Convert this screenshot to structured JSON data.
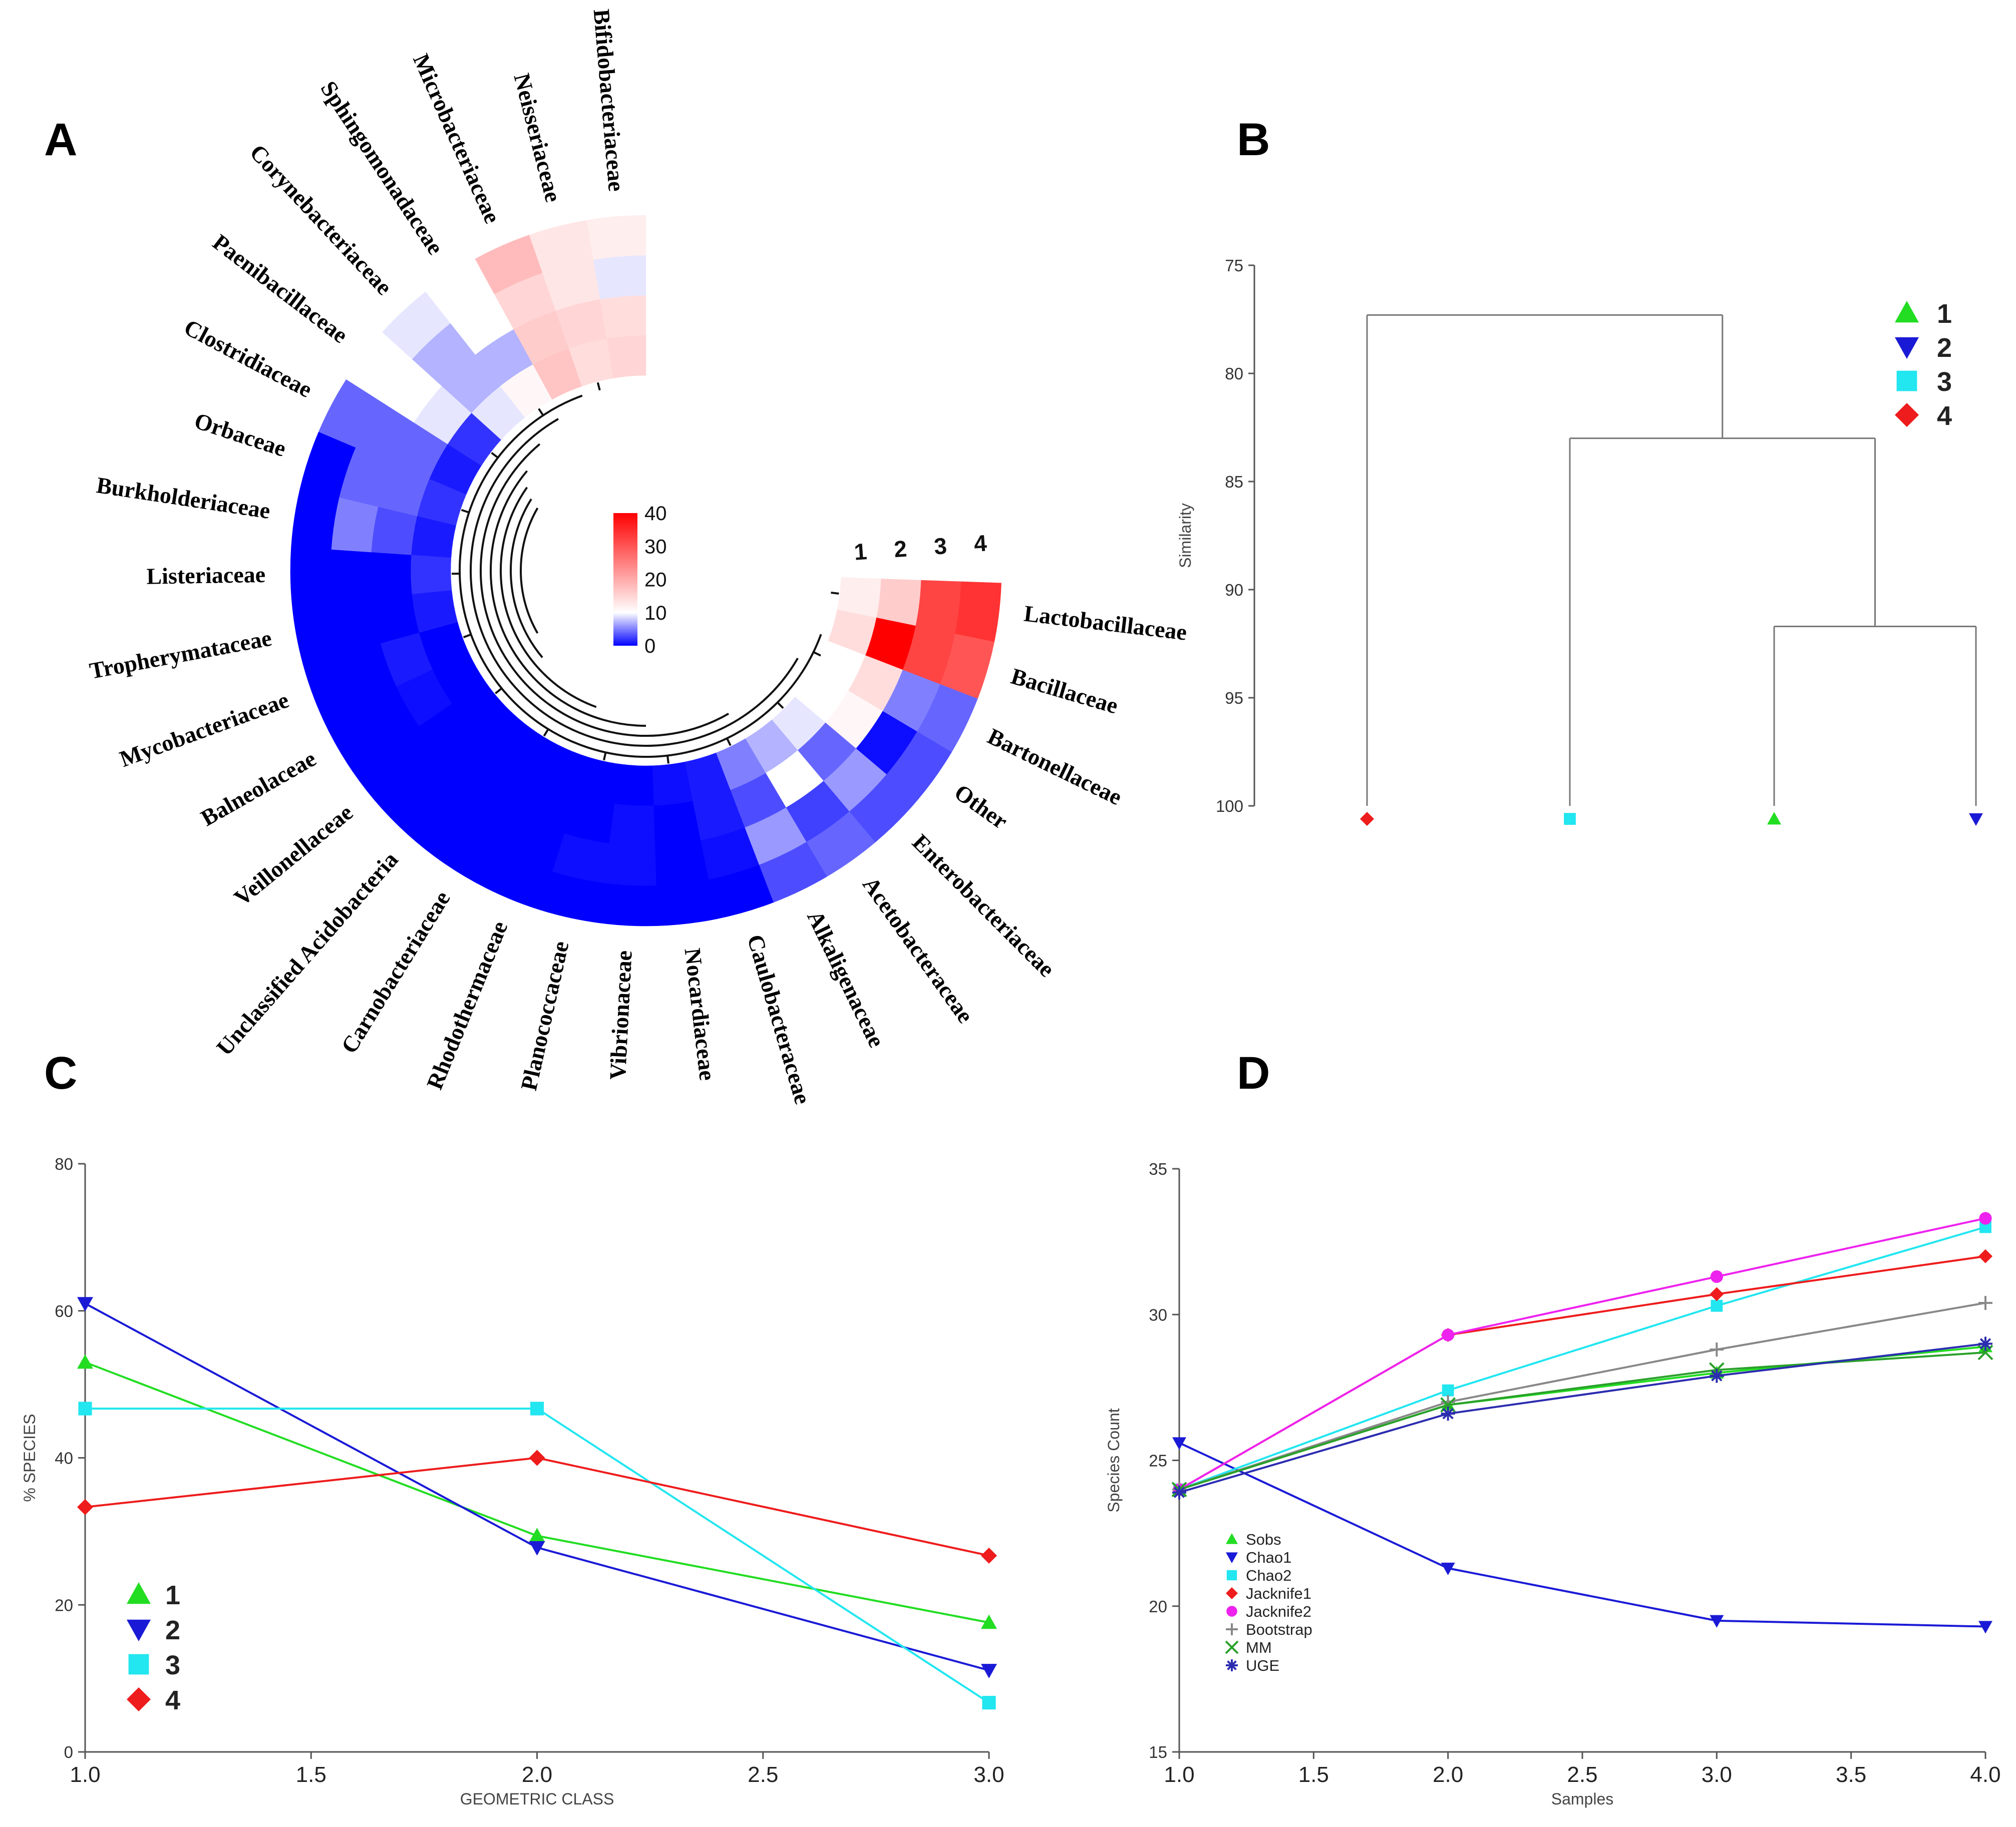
{
  "panels": {
    "a": "A",
    "b": "B",
    "c": "C",
    "d": "D"
  },
  "legend_samples": [
    "1",
    "2",
    "3",
    "4"
  ],
  "colors": {
    "s1": "#22dd22",
    "s2": "#1a1ad6",
    "s3": "#22e6f0",
    "s4": "#ee1c1c",
    "s5": "#ee22ee",
    "s6": "#888888",
    "s7": "#2aa02a",
    "s8": "#2c2cb0",
    "heat_low": "#0000ff",
    "heat_mid": "#ffffff",
    "heat_high": "#ff0000"
  },
  "chart_data": [
    {
      "type": "heatmap",
      "panel": "A",
      "layout": "circular",
      "sample_labels": [
        "1",
        "2",
        "3",
        "4"
      ],
      "color_scale": {
        "ticks": [
          "40",
          "30",
          "20",
          "10",
          "0"
        ],
        "min": 0,
        "max": 40,
        "mid": 10
      },
      "families": [
        {
          "name": "Lactobacillaceae",
          "values": [
            12,
            16,
            32,
            34
          ]
        },
        {
          "name": "Bacillaceae",
          "values": [
            14,
            40,
            32,
            30
          ]
        },
        {
          "name": "Bartonellaceae",
          "values": [
            10,
            14,
            5,
            4
          ]
        },
        {
          "name": "Other",
          "values": [
            10,
            11,
            0.5,
            3
          ]
        },
        {
          "name": "Enterobacteriaceae",
          "values": [
            9,
            4,
            6,
            3
          ]
        },
        {
          "name": "Acetobacteraceae",
          "values": [
            7,
            10,
            2.5,
            4
          ]
        },
        {
          "name": "Alkaligenaceae",
          "values": [
            5,
            3,
            6,
            3
          ]
        },
        {
          "name": "Caulobacteraceae",
          "values": [
            1,
            1,
            0.5,
            0
          ]
        },
        {
          "name": "Nocardiaceae",
          "values": [
            0.5,
            0,
            0,
            0
          ]
        },
        {
          "name": "Vibrionaceae",
          "values": [
            0,
            0.5,
            0.5,
            0
          ]
        },
        {
          "name": "Planococcaceae",
          "values": [
            0,
            0,
            0.5,
            0
          ]
        },
        {
          "name": "Rhodothermaceae",
          "values": [
            0,
            0,
            0,
            0
          ]
        },
        {
          "name": "Carnobacteriaceae",
          "values": [
            0,
            0,
            0,
            0
          ]
        },
        {
          "name": "Unclassified Acidobacteria",
          "values": [
            0,
            0,
            0,
            0
          ]
        },
        {
          "name": "Veillonellaceae",
          "values": [
            0,
            0,
            0,
            0
          ]
        },
        {
          "name": "Balneolaceae",
          "values": [
            0,
            0.5,
            0,
            0
          ]
        },
        {
          "name": "Mycobacteriaceae",
          "values": [
            0,
            1,
            0,
            0
          ]
        },
        {
          "name": "Tropherymataceae",
          "values": [
            1,
            0,
            0,
            0
          ]
        },
        {
          "name": "Listeriaceae",
          "values": [
            2,
            0,
            0,
            0
          ]
        },
        {
          "name": "Burkholderiaceae",
          "values": [
            1,
            3,
            5,
            0
          ]
        },
        {
          "name": "Orbaceae",
          "values": [
            2,
            4,
            4,
            0
          ]
        },
        {
          "name": "Clostridiaceae",
          "values": [
            1,
            4,
            4,
            4
          ]
        },
        {
          "name": "Paenibacillaceae",
          "values": [
            2,
            9,
            10,
            10
          ]
        },
        {
          "name": "Corynebacteriaceae",
          "values": [
            9,
            7,
            7,
            9
          ]
        },
        {
          "name": "Sphingomonadaceae",
          "values": [
            11,
            7,
            10,
            10
          ]
        },
        {
          "name": "Microbacteriaceae",
          "values": [
            17,
            16,
            15,
            18
          ]
        },
        {
          "name": "Neisseriaceae",
          "values": [
            14,
            15,
            13,
            13
          ]
        },
        {
          "name": "Bifidobacteriaceae",
          "values": [
            15,
            14,
            9,
            12
          ]
        }
      ]
    },
    {
      "type": "dendrogram",
      "panel": "B",
      "ylabel": "Similarity",
      "ylim": [
        75,
        100
      ],
      "yticks": [
        "75",
        "80",
        "85",
        "90",
        "95",
        "100"
      ],
      "leaves": [
        "4",
        "3",
        "1",
        "2"
      ],
      "merges": [
        {
          "members": [
            "1",
            "2"
          ],
          "similarity": 91.7
        },
        {
          "members": [
            "3",
            "1",
            "2"
          ],
          "similarity": 83.0
        },
        {
          "members": [
            "4",
            "3",
            "1",
            "2"
          ],
          "similarity": 77.3
        }
      ]
    },
    {
      "type": "line",
      "panel": "C",
      "xlabel": "GEOMETRIC CLASS",
      "ylabel": "% SPECIES",
      "xlim": [
        1.0,
        3.0
      ],
      "ylim": [
        0,
        80
      ],
      "xticks": [
        "1.0",
        "1.5",
        "2.0",
        "2.5",
        "3.0"
      ],
      "yticks": [
        "0",
        "20",
        "40",
        "60",
        "80"
      ],
      "x": [
        1.0,
        2.0,
        3.0
      ],
      "series": [
        {
          "name": "1",
          "marker": "triangle-up",
          "values": [
            53,
            29.4,
            17.6
          ]
        },
        {
          "name": "2",
          "marker": "triangle-down",
          "values": [
            61,
            27.8,
            11.1
          ]
        },
        {
          "name": "3",
          "marker": "square",
          "values": [
            46.7,
            46.7,
            6.7
          ]
        },
        {
          "name": "4",
          "marker": "diamond",
          "values": [
            33.3,
            40,
            26.7
          ]
        }
      ]
    },
    {
      "type": "line",
      "panel": "D",
      "xlabel": "Samples",
      "ylabel": "Species Count",
      "xlim": [
        1.0,
        4.0
      ],
      "ylim": [
        15,
        35
      ],
      "xticks": [
        "1.0",
        "1.5",
        "2.0",
        "2.5",
        "3.0",
        "3.5",
        "4.0"
      ],
      "yticks": [
        "15",
        "20",
        "25",
        "30",
        "35"
      ],
      "x": [
        1,
        2,
        3,
        4
      ],
      "series": [
        {
          "name": "Sobs",
          "marker": "triangle-up",
          "values": [
            24,
            26.9,
            28,
            28.9
          ]
        },
        {
          "name": "Chao1",
          "marker": "triangle-down",
          "values": [
            25.6,
            21.3,
            19.5,
            19.3
          ]
        },
        {
          "name": "Chao2",
          "marker": "square",
          "values": [
            24,
            27.4,
            30.3,
            33
          ]
        },
        {
          "name": "Jacknife1",
          "marker": "diamond",
          "values": [
            24,
            29.3,
            30.7,
            32
          ]
        },
        {
          "name": "Jacknife2",
          "marker": "circle",
          "values": [
            24,
            29.3,
            31.3,
            33.3
          ]
        },
        {
          "name": "Bootstrap",
          "marker": "plus",
          "values": [
            24,
            27,
            28.8,
            30.4
          ]
        },
        {
          "name": "MM",
          "marker": "cross",
          "values": [
            24,
            26.9,
            28.1,
            28.7
          ]
        },
        {
          "name": "UGE",
          "marker": "asterisk",
          "values": [
            23.9,
            26.6,
            27.9,
            29
          ]
        }
      ]
    }
  ]
}
